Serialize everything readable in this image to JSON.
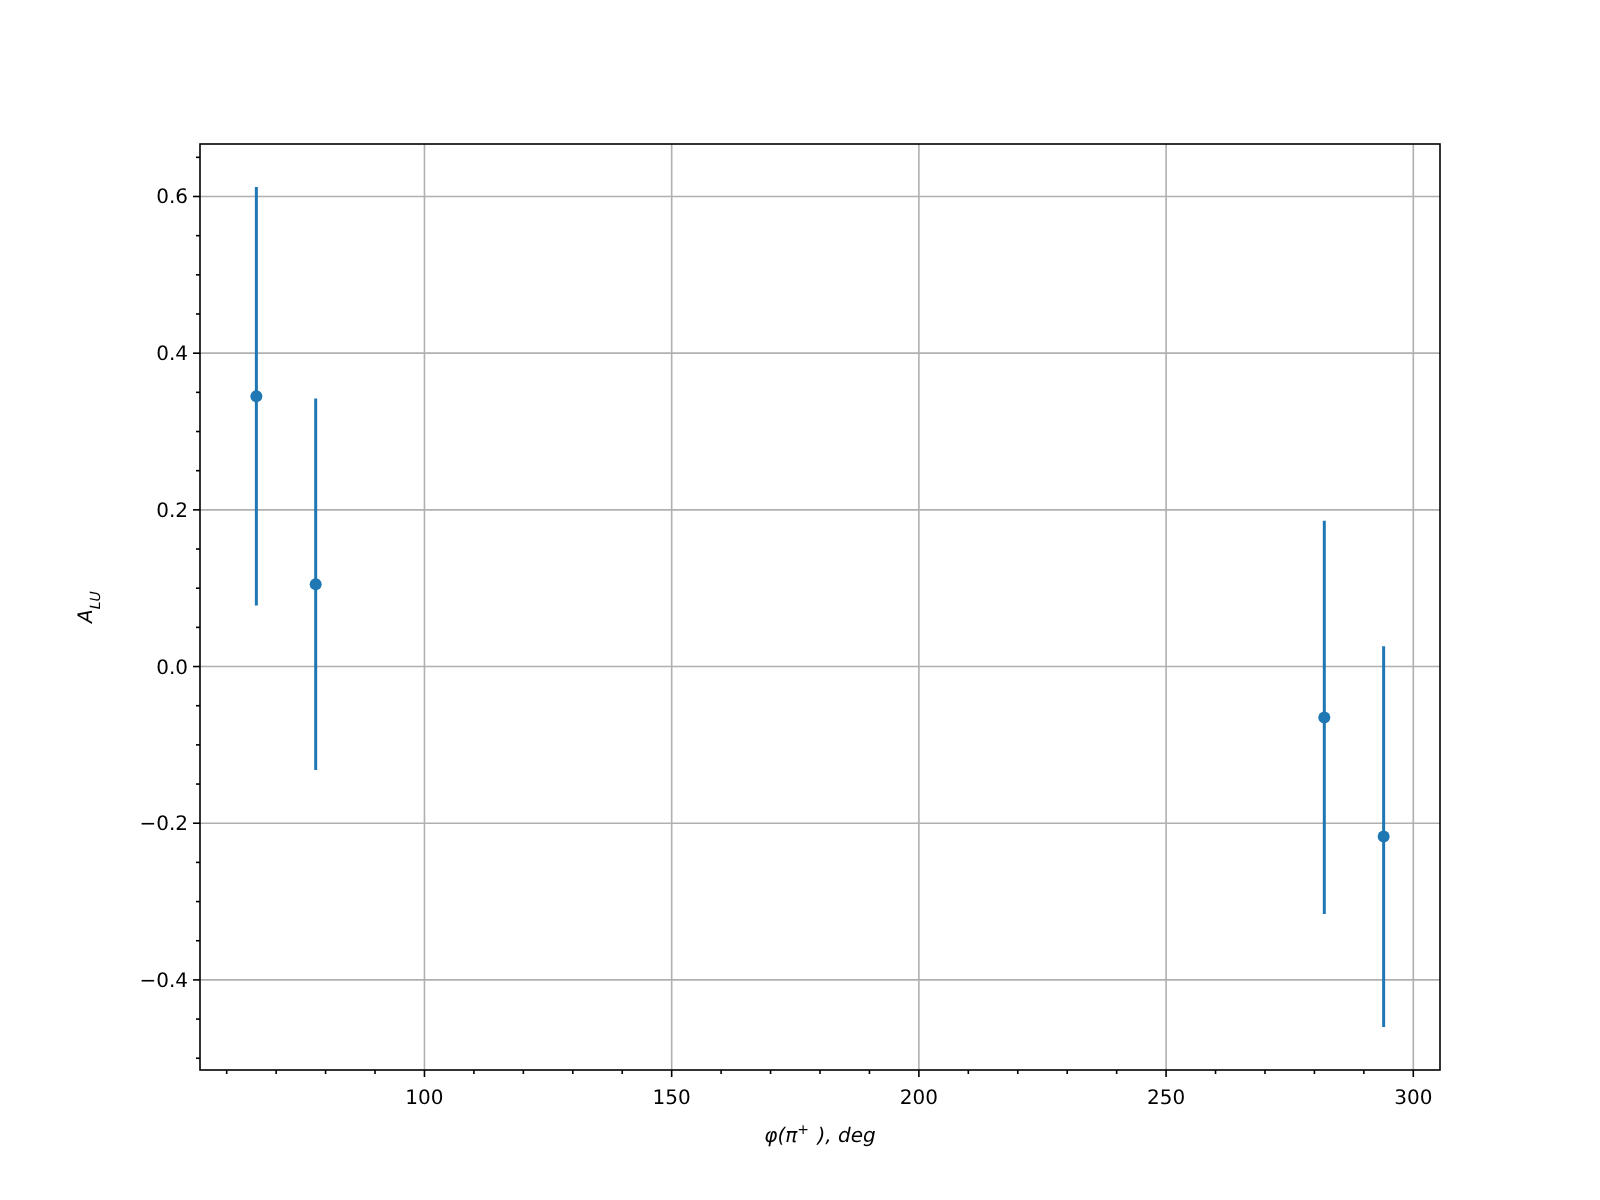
{
  "chart_data": {
    "type": "scatter",
    "xlabel": "φ(π$^{+}$), deg",
    "ylabel": "A$_{LU}$",
    "x": [
      66,
      78,
      282,
      294
    ],
    "values": [
      0.345,
      0.105,
      -0.065,
      -0.217
    ],
    "errors": [
      0.267,
      0.237,
      0.251,
      0.243
    ],
    "color": "#1f77b4",
    "marker": "circle",
    "grid": true,
    "xlim": [
      54.6,
      305.4
    ],
    "xticks": [
      {
        "value": 60,
        "label": null
      },
      {
        "value": 70,
        "label": null
      },
      {
        "value": 80,
        "label": null
      },
      {
        "value": 90,
        "label": null
      },
      100,
      {
        "value": 110,
        "label": null
      },
      {
        "value": 120,
        "label": null
      },
      {
        "value": 130,
        "label": null
      },
      {
        "value": 140,
        "label": null
      },
      150,
      {
        "value": 160,
        "label": null
      },
      {
        "value": 170,
        "label": null
      },
      {
        "value": 180,
        "label": null
      },
      {
        "value": 190,
        "label": null
      },
      200,
      {
        "value": 210,
        "label": null
      },
      {
        "value": 220,
        "label": null
      },
      {
        "value": 230,
        "label": null
      },
      {
        "value": 240,
        "label": null
      },
      250,
      {
        "value": 260,
        "label": null
      },
      {
        "value": 270,
        "label": null
      },
      {
        "value": 280,
        "label": null
      },
      {
        "value": 290,
        "label": null
      },
      300
    ],
    "ylim": [
      -0.515,
      0.667
    ],
    "yticks": [
      {
        "value": -0.5,
        "label": null
      },
      {
        "value": -0.45,
        "label": null
      },
      {
        "value": -0.4,
        "label": "−0.4"
      },
      {
        "value": -0.35,
        "label": null
      },
      {
        "value": -0.3,
        "label": null
      },
      {
        "value": -0.25,
        "label": null
      },
      {
        "value": -0.2,
        "label": "−0.2"
      },
      {
        "value": -0.15,
        "label": null
      },
      {
        "value": -0.1,
        "label": null
      },
      {
        "value": -0.05,
        "label": null
      },
      {
        "value": 0,
        "label": "0.0"
      },
      {
        "value": 0.05,
        "label": null
      },
      {
        "value": 0.1,
        "label": null
      },
      {
        "value": 0.15,
        "label": null
      },
      {
        "value": 0.2,
        "label": "0.2"
      },
      {
        "value": 0.25,
        "label": null
      },
      {
        "value": 0.3,
        "label": null
      },
      {
        "value": 0.35,
        "label": null
      },
      {
        "value": 0.4,
        "label": "0.4"
      },
      {
        "value": 0.45,
        "label": null
      },
      {
        "value": 0.5,
        "label": null
      },
      {
        "value": 0.55,
        "label": null
      },
      {
        "value": 0.6,
        "label": "0.6"
      },
      {
        "value": 0.65,
        "label": null
      }
    ]
  }
}
